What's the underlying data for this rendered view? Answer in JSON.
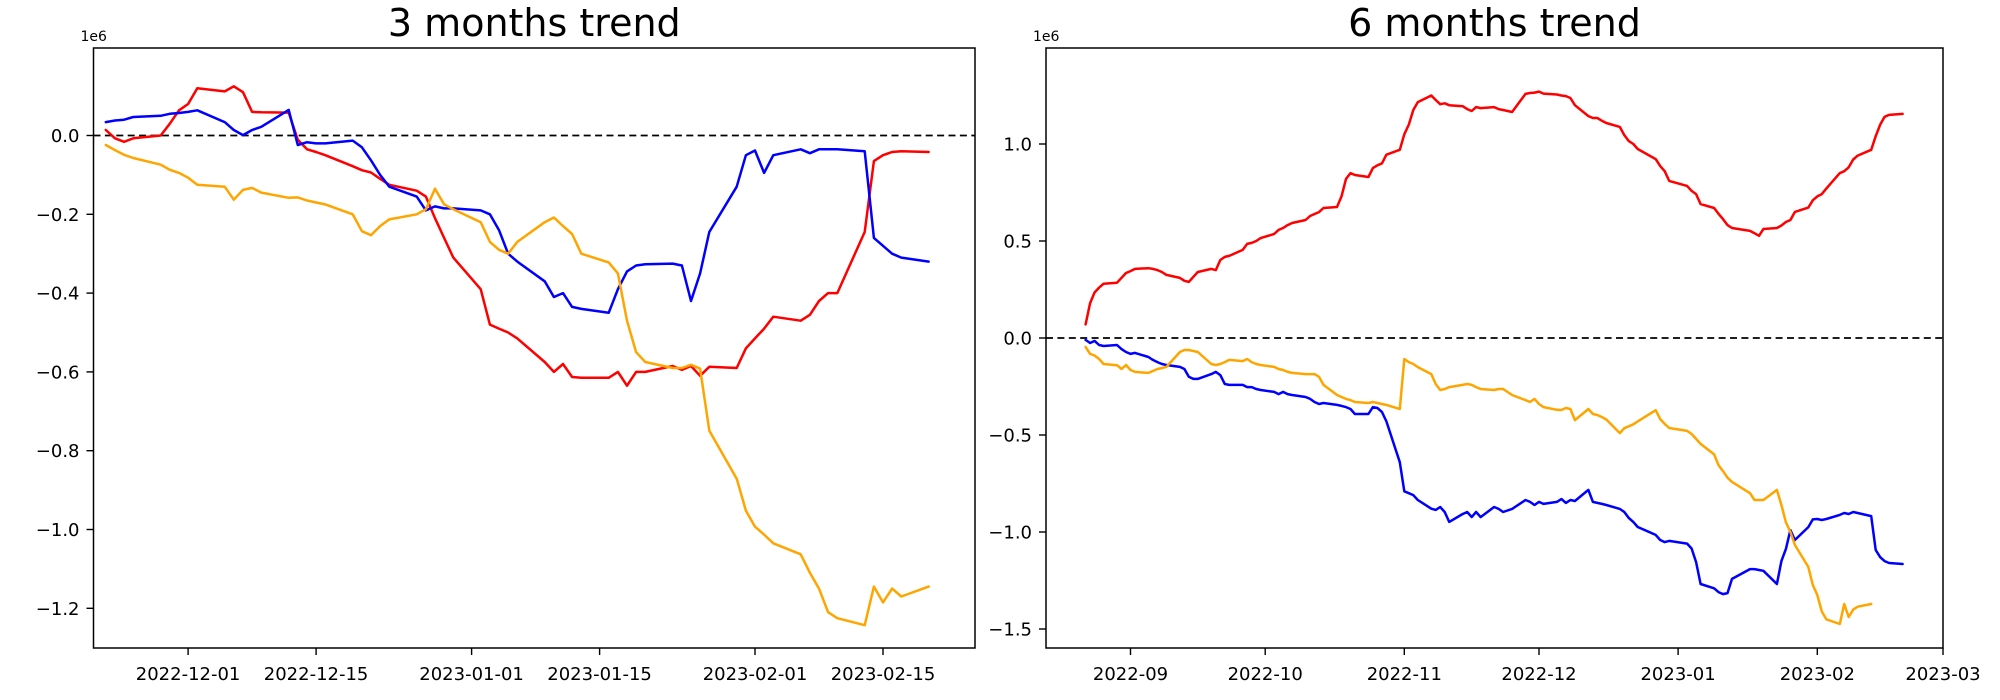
{
  "page": {
    "background": "#ffffff",
    "axis_color": "#000000"
  },
  "chart_data": [
    {
      "id": "3-months-trend",
      "type": "line",
      "title": "3 months trend",
      "offset_label": "1e6",
      "xlabel": "",
      "ylabel": "",
      "grid": false,
      "legend": "none",
      "zero_line": true,
      "xlim": [
        "2022-11-20",
        "2023-02-25"
      ],
      "ylim": [
        -1.3,
        0.22
      ],
      "xticks": [
        {
          "date": "2022-12-01",
          "label": "2022-12-01"
        },
        {
          "date": "2022-12-15",
          "label": "2022-12-15"
        },
        {
          "date": "2023-01-01",
          "label": "2023-01-01"
        },
        {
          "date": "2023-01-15",
          "label": "2023-01-15"
        },
        {
          "date": "2023-02-01",
          "label": "2023-02-01"
        },
        {
          "date": "2023-02-15",
          "label": "2023-02-15"
        }
      ],
      "yticks": [
        {
          "value": 0.0,
          "label": "0.0"
        },
        {
          "value": -0.2,
          "label": "−0.2"
        },
        {
          "value": -0.4,
          "label": "−0.4"
        },
        {
          "value": -0.6,
          "label": "−0.6"
        },
        {
          "value": -0.8,
          "label": "−0.8"
        },
        {
          "value": -1.0,
          "label": "−1.0"
        },
        {
          "value": -1.2,
          "label": "−1.2"
        }
      ],
      "x": [
        "2022-11-22",
        "2022-11-23",
        "2022-11-24",
        "2022-11-25",
        "2022-11-28",
        "2022-11-29",
        "2022-11-30",
        "2022-12-01",
        "2022-12-02",
        "2022-12-05",
        "2022-12-06",
        "2022-12-07",
        "2022-12-08",
        "2022-12-09",
        "2022-12-12",
        "2022-12-13",
        "2022-12-14",
        "2022-12-15",
        "2022-12-16",
        "2022-12-19",
        "2022-12-20",
        "2022-12-21",
        "2022-12-22",
        "2022-12-23",
        "2022-12-26",
        "2022-12-27",
        "2022-12-28",
        "2022-12-29",
        "2022-12-30",
        "2023-01-02",
        "2023-01-03",
        "2023-01-04",
        "2023-01-05",
        "2023-01-06",
        "2023-01-09",
        "2023-01-10",
        "2023-01-11",
        "2023-01-12",
        "2023-01-13",
        "2023-01-16",
        "2023-01-17",
        "2023-01-18",
        "2023-01-19",
        "2023-01-20",
        "2023-01-23",
        "2023-01-24",
        "2023-01-25",
        "2023-01-26",
        "2023-01-27",
        "2023-01-30",
        "2023-01-31",
        "2023-02-01",
        "2023-02-02",
        "2023-02-03",
        "2023-02-06",
        "2023-02-07",
        "2023-02-08",
        "2023-02-09",
        "2023-02-10",
        "2023-02-13",
        "2023-02-14",
        "2023-02-15",
        "2023-02-16",
        "2023-02-17",
        "2023-02-20"
      ],
      "series": [
        {
          "name": "red-series",
          "color": "#ff0000",
          "values": [
            0.014,
            -0.007,
            -0.016,
            -0.007,
            0.0,
            0.03,
            0.064,
            0.08,
            0.12,
            0.112,
            0.125,
            0.11,
            0.06,
            0.059,
            0.058,
            -0.011,
            -0.035,
            -0.042,
            -0.05,
            -0.078,
            -0.088,
            -0.094,
            -0.11,
            -0.125,
            -0.14,
            -0.155,
            -0.21,
            -0.26,
            -0.31,
            -0.39,
            -0.48,
            -0.49,
            -0.5,
            -0.515,
            -0.575,
            -0.6,
            -0.58,
            -0.613,
            -0.615,
            -0.615,
            -0.6,
            -0.635,
            -0.6,
            -0.6,
            -0.585,
            -0.595,
            -0.585,
            -0.61,
            -0.587,
            -0.59,
            -0.54,
            -0.515,
            -0.49,
            -0.46,
            -0.47,
            -0.455,
            -0.42,
            -0.4,
            -0.4,
            -0.245,
            -0.065,
            -0.05,
            -0.042,
            -0.04,
            -0.042
          ]
        },
        {
          "name": "blue-series",
          "color": "#0000ff",
          "values": [
            0.034,
            0.038,
            0.04,
            0.047,
            0.05,
            0.055,
            0.057,
            0.06,
            0.064,
            0.034,
            0.014,
            0.001,
            0.014,
            0.022,
            0.065,
            -0.024,
            -0.017,
            -0.02,
            -0.02,
            -0.013,
            -0.03,
            -0.063,
            -0.1,
            -0.13,
            -0.155,
            -0.19,
            -0.18,
            -0.185,
            -0.185,
            -0.19,
            -0.2,
            -0.24,
            -0.3,
            -0.32,
            -0.37,
            -0.41,
            -0.4,
            -0.435,
            -0.44,
            -0.45,
            -0.39,
            -0.345,
            -0.33,
            -0.327,
            -0.325,
            -0.33,
            -0.42,
            -0.35,
            -0.245,
            -0.13,
            -0.05,
            -0.038,
            -0.095,
            -0.05,
            -0.035,
            -0.045,
            -0.035,
            -0.035,
            -0.035,
            -0.04,
            -0.26,
            -0.28,
            -0.3,
            -0.31,
            -0.32
          ]
        },
        {
          "name": "orange-series",
          "color": "#ffa500",
          "values": [
            -0.024,
            -0.037,
            -0.049,
            -0.057,
            -0.074,
            -0.087,
            -0.095,
            -0.107,
            -0.125,
            -0.13,
            -0.163,
            -0.138,
            -0.133,
            -0.145,
            -0.158,
            -0.157,
            -0.165,
            -0.17,
            -0.175,
            -0.2,
            -0.243,
            -0.253,
            -0.23,
            -0.213,
            -0.2,
            -0.187,
            -0.135,
            -0.175,
            -0.187,
            -0.22,
            -0.27,
            -0.29,
            -0.3,
            -0.27,
            -0.22,
            -0.208,
            -0.23,
            -0.25,
            -0.3,
            -0.322,
            -0.35,
            -0.47,
            -0.55,
            -0.575,
            -0.59,
            -0.59,
            -0.582,
            -0.592,
            -0.749,
            -0.871,
            -0.952,
            -0.993,
            -1.013,
            -1.035,
            -1.063,
            -1.11,
            -1.15,
            -1.21,
            -1.225,
            -1.243,
            -1.145,
            -1.185,
            -1.15,
            -1.17,
            -1.145
          ]
        }
      ]
    },
    {
      "id": "6-months-trend",
      "type": "line",
      "title": "6 months trend",
      "offset_label": "1e6",
      "xlabel": "",
      "ylabel": "",
      "grid": false,
      "legend": "none",
      "zero_line": true,
      "xlim": [
        "2022-08-13",
        "2023-03-01"
      ],
      "ylim": [
        -1.6,
        1.5
      ],
      "xticks": [
        {
          "date": "2022-09-01",
          "label": "2022-09"
        },
        {
          "date": "2022-10-01",
          "label": "2022-10"
        },
        {
          "date": "2022-11-01",
          "label": "2022-11"
        },
        {
          "date": "2022-12-01",
          "label": "2022-12"
        },
        {
          "date": "2023-01-01",
          "label": "2023-01"
        },
        {
          "date": "2023-02-01",
          "label": "2023-02"
        },
        {
          "date": "2023-03-01",
          "label": "2023-03"
        }
      ],
      "yticks": [
        {
          "value": 1.0,
          "label": "1.0"
        },
        {
          "value": 0.5,
          "label": "0.5"
        },
        {
          "value": 0.0,
          "label": "0.0"
        },
        {
          "value": -0.5,
          "label": "−0.5"
        },
        {
          "value": -1.0,
          "label": "−1.0"
        },
        {
          "value": -1.5,
          "label": "−1.5"
        }
      ],
      "x": [
        "2022-08-22",
        "2022-08-23",
        "2022-08-24",
        "2022-08-25",
        "2022-08-26",
        "2022-08-29",
        "2022-08-30",
        "2022-08-31",
        "2022-09-01",
        "2022-09-02",
        "2022-09-05",
        "2022-09-06",
        "2022-09-07",
        "2022-09-08",
        "2022-09-09",
        "2022-09-12",
        "2022-09-13",
        "2022-09-14",
        "2022-09-15",
        "2022-09-16",
        "2022-09-19",
        "2022-09-20",
        "2022-09-21",
        "2022-09-22",
        "2022-09-23",
        "2022-09-26",
        "2022-09-27",
        "2022-09-28",
        "2022-09-29",
        "2022-09-30",
        "2022-10-03",
        "2022-10-04",
        "2022-10-05",
        "2022-10-06",
        "2022-10-07",
        "2022-10-10",
        "2022-10-11",
        "2022-10-12",
        "2022-10-13",
        "2022-10-14",
        "2022-10-17",
        "2022-10-18",
        "2022-10-19",
        "2022-10-20",
        "2022-10-21",
        "2022-10-24",
        "2022-10-25",
        "2022-10-26",
        "2022-10-27",
        "2022-10-28",
        "2022-10-31",
        "2022-11-01",
        "2022-11-02",
        "2022-11-03",
        "2022-11-04",
        "2022-11-07",
        "2022-11-08",
        "2022-11-09",
        "2022-11-10",
        "2022-11-11",
        "2022-11-14",
        "2022-11-15",
        "2022-11-16",
        "2022-11-17",
        "2022-11-18",
        "2022-11-21",
        "2022-11-22",
        "2022-11-23",
        "2022-11-25",
        "2022-11-28",
        "2022-11-29",
        "2022-11-30",
        "2022-12-01",
        "2022-12-02",
        "2022-12-05",
        "2022-12-06",
        "2022-12-07",
        "2022-12-08",
        "2022-12-09",
        "2022-12-12",
        "2022-12-13",
        "2022-12-14",
        "2022-12-15",
        "2022-12-16",
        "2022-12-19",
        "2022-12-20",
        "2022-12-21",
        "2022-12-22",
        "2022-12-23",
        "2022-12-27",
        "2022-12-28",
        "2022-12-29",
        "2022-12-30",
        "2023-01-03",
        "2023-01-04",
        "2023-01-05",
        "2023-01-06",
        "2023-01-09",
        "2023-01-10",
        "2023-01-11",
        "2023-01-12",
        "2023-01-13",
        "2023-01-17",
        "2023-01-18",
        "2023-01-19",
        "2023-01-20",
        "2023-01-23",
        "2023-01-24",
        "2023-01-25",
        "2023-01-26",
        "2023-01-27",
        "2023-01-30",
        "2023-01-31",
        "2023-02-01",
        "2023-02-02",
        "2023-02-03",
        "2023-02-06",
        "2023-02-07",
        "2023-02-08",
        "2023-02-09",
        "2023-02-10",
        "2023-02-13",
        "2023-02-14",
        "2023-02-15",
        "2023-02-16",
        "2023-02-17",
        "2023-02-20"
      ],
      "series": [
        {
          "name": "red-series",
          "color": "#ff0000",
          "values": [
            0.07,
            0.18,
            0.235,
            0.26,
            0.28,
            0.285,
            0.31,
            0.335,
            0.345,
            0.356,
            0.36,
            0.356,
            0.35,
            0.34,
            0.325,
            0.31,
            0.295,
            0.289,
            0.315,
            0.34,
            0.356,
            0.35,
            0.402,
            0.418,
            0.423,
            0.454,
            0.485,
            0.49,
            0.5,
            0.515,
            0.536,
            0.557,
            0.567,
            0.582,
            0.593,
            0.608,
            0.629,
            0.639,
            0.649,
            0.67,
            0.675,
            0.73,
            0.82,
            0.85,
            0.84,
            0.83,
            0.876,
            0.89,
            0.9,
            0.945,
            0.97,
            1.05,
            1.1,
            1.175,
            1.216,
            1.25,
            1.227,
            1.205,
            1.21,
            1.2,
            1.195,
            1.18,
            1.17,
            1.19,
            1.185,
            1.19,
            1.18,
            1.175,
            1.165,
            1.258,
            1.263,
            1.265,
            1.27,
            1.26,
            1.255,
            1.25,
            1.247,
            1.237,
            1.2,
            1.144,
            1.134,
            1.134,
            1.12,
            1.108,
            1.088,
            1.046,
            1.015,
            1.0,
            0.974,
            0.922,
            0.886,
            0.86,
            0.81,
            0.784,
            0.758,
            0.742,
            0.69,
            0.67,
            0.64,
            0.613,
            0.582,
            0.567,
            0.552,
            0.54,
            0.527,
            0.562,
            0.567,
            0.58,
            0.598,
            0.608,
            0.65,
            0.672,
            0.71,
            0.73,
            0.742,
            0.77,
            0.85,
            0.86,
            0.88,
            0.92,
            0.94,
            0.97,
            1.04,
            1.1,
            1.14,
            1.15,
            1.155
          ]
        },
        {
          "name": "blue-series",
          "color": "#0000ff",
          "values": [
            -0.01,
            -0.026,
            -0.015,
            -0.036,
            -0.041,
            -0.036,
            -0.057,
            -0.072,
            -0.082,
            -0.077,
            -0.098,
            -0.113,
            -0.124,
            -0.134,
            -0.139,
            -0.149,
            -0.16,
            -0.2,
            -0.211,
            -0.211,
            -0.186,
            -0.175,
            -0.191,
            -0.237,
            -0.242,
            -0.242,
            -0.253,
            -0.253,
            -0.263,
            -0.268,
            -0.278,
            -0.289,
            -0.278,
            -0.289,
            -0.294,
            -0.304,
            -0.314,
            -0.33,
            -0.34,
            -0.335,
            -0.345,
            -0.35,
            -0.356,
            -0.366,
            -0.392,
            -0.392,
            -0.356,
            -0.361,
            -0.381,
            -0.43,
            -0.64,
            -0.79,
            -0.8,
            -0.81,
            -0.835,
            -0.88,
            -0.886,
            -0.871,
            -0.897,
            -0.948,
            -0.907,
            -0.897,
            -0.923,
            -0.897,
            -0.923,
            -0.871,
            -0.881,
            -0.897,
            -0.881,
            -0.835,
            -0.845,
            -0.861,
            -0.845,
            -0.855,
            -0.845,
            -0.83,
            -0.85,
            -0.835,
            -0.84,
            -0.783,
            -0.845,
            -0.85,
            -0.855,
            -0.861,
            -0.881,
            -0.897,
            -0.928,
            -0.948,
            -0.974,
            -1.015,
            -1.041,
            -1.052,
            -1.046,
            -1.06,
            -1.085,
            -1.155,
            -1.268,
            -1.29,
            -1.31,
            -1.32,
            -1.315,
            -1.242,
            -1.191,
            -1.191,
            -1.196,
            -1.2,
            -1.268,
            -1.15,
            -1.087,
            -0.99,
            -1.041,
            -0.975,
            -0.935,
            -0.933,
            -0.938,
            -0.933,
            -0.912,
            -0.902,
            -0.907,
            -0.897,
            -0.902,
            -0.918,
            -1.093,
            -1.13,
            -1.15,
            -1.16,
            -1.165
          ]
        },
        {
          "name": "orange-series",
          "color": "#ffa500",
          "values": [
            -0.046,
            -0.082,
            -0.09,
            -0.108,
            -0.134,
            -0.14,
            -0.16,
            -0.139,
            -0.165,
            -0.175,
            -0.18,
            -0.17,
            -0.16,
            -0.155,
            -0.149,
            -0.072,
            -0.062,
            -0.062,
            -0.067,
            -0.072,
            -0.134,
            -0.139,
            -0.134,
            -0.124,
            -0.113,
            -0.119,
            -0.108,
            -0.124,
            -0.134,
            -0.139,
            -0.149,
            -0.16,
            -0.165,
            -0.175,
            -0.18,
            -0.186,
            -0.186,
            -0.186,
            -0.2,
            -0.242,
            -0.294,
            -0.304,
            -0.314,
            -0.32,
            -0.33,
            -0.335,
            -0.33,
            -0.335,
            -0.34,
            -0.345,
            -0.366,
            -0.108,
            -0.124,
            -0.134,
            -0.15,
            -0.186,
            -0.237,
            -0.268,
            -0.263,
            -0.253,
            -0.242,
            -0.237,
            -0.242,
            -0.253,
            -0.263,
            -0.268,
            -0.263,
            -0.263,
            -0.294,
            -0.32,
            -0.33,
            -0.314,
            -0.34,
            -0.356,
            -0.37,
            -0.371,
            -0.361,
            -0.366,
            -0.423,
            -0.366,
            -0.392,
            -0.397,
            -0.407,
            -0.42,
            -0.49,
            -0.465,
            -0.455,
            -0.445,
            -0.43,
            -0.372,
            -0.418,
            -0.443,
            -0.464,
            -0.479,
            -0.495,
            -0.52,
            -0.546,
            -0.6,
            -0.655,
            -0.686,
            -0.72,
            -0.742,
            -0.8,
            -0.835,
            -0.835,
            -0.835,
            -0.783,
            -0.861,
            -0.95,
            -1.0,
            -1.067,
            -1.18,
            -1.273,
            -1.325,
            -1.41,
            -1.45,
            -1.474,
            -1.371,
            -1.438,
            -1.4,
            -1.385,
            -1.371,
            null,
            null,
            null,
            null,
            null
          ]
        }
      ]
    }
  ]
}
